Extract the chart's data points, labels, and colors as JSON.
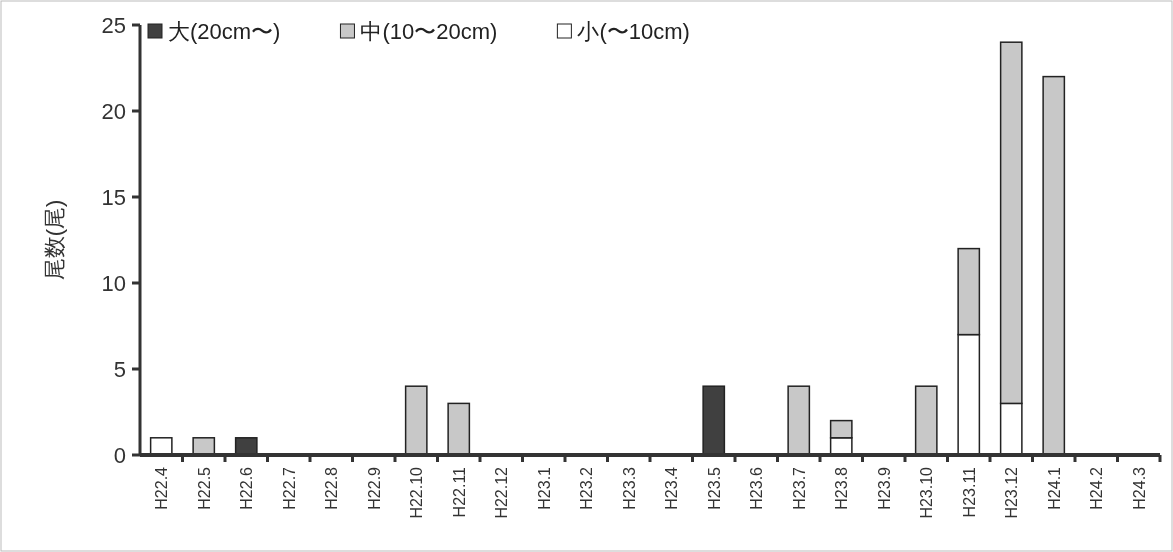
{
  "chart_data": {
    "type": "bar",
    "stacked": true,
    "ylabel": "尾数(尾)",
    "categories": [
      "H22.4",
      "H22.5",
      "H22.6",
      "H22.7",
      "H22.8",
      "H22.9",
      "H22.10",
      "H22.11",
      "H22.12",
      "H23.1",
      "H23.2",
      "H23.3",
      "H23.4",
      "H23.5",
      "H23.6",
      "H23.7",
      "H23.8",
      "H23.9",
      "H23.10",
      "H23.11",
      "H23.12",
      "H24.1",
      "H24.2",
      "H24.3"
    ],
    "series": [
      {
        "name": "小(〜10cm)",
        "color": "#ffffff",
        "values": [
          1,
          0,
          0,
          0,
          0,
          0,
          0,
          0,
          0,
          0,
          0,
          0,
          0,
          0,
          0,
          0,
          1,
          0,
          0,
          7,
          3,
          0,
          0,
          0
        ]
      },
      {
        "name": "中(10〜20cm)",
        "color": "#c8c8c8",
        "values": [
          0,
          1,
          0,
          0,
          0,
          0,
          4,
          3,
          0,
          0,
          0,
          0,
          0,
          0,
          0,
          4,
          1,
          0,
          4,
          5,
          21,
          22,
          0,
          0
        ]
      },
      {
        "name": "大(20cm〜)",
        "color": "#404040",
        "values": [
          0,
          0,
          1,
          0,
          0,
          0,
          0,
          0,
          0,
          0,
          0,
          0,
          0,
          4,
          0,
          0,
          0,
          0,
          0,
          0,
          0,
          0,
          0,
          0
        ]
      }
    ],
    "ylim": [
      0,
      25
    ],
    "yticks": [
      0,
      5,
      10,
      15,
      20,
      25
    ],
    "grid": false,
    "legend": "top left"
  }
}
